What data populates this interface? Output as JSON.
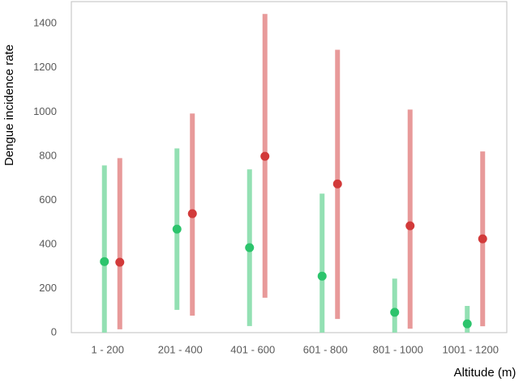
{
  "chart_data": {
    "type": "dot-range",
    "y_label": "Dengue incidence rate",
    "x_label": "Altitude (m)",
    "categories": [
      "1 - 200",
      "201 - 400",
      "401 - 600",
      "601 - 800",
      "801 - 1000",
      "1001 - 1200"
    ],
    "series": [
      {
        "color": "#93e0b3",
        "marker_color": "#2cc46c",
        "values": [
          322,
          469,
          385,
          256,
          92,
          40
        ],
        "low": [
          0,
          103,
          30,
          0,
          0,
          0
        ],
        "high": [
          758,
          835,
          740,
          630,
          245,
          121
        ]
      },
      {
        "color": "#e89a9a",
        "marker_color": "#d23a3a",
        "values": [
          319,
          539,
          799,
          674,
          484,
          425
        ],
        "low": [
          15,
          77,
          158,
          62,
          18,
          29
        ],
        "high": [
          791,
          993,
          1444,
          1282,
          1011,
          821
        ]
      }
    ],
    "ylim": [
      0,
      1500
    ],
    "yticks": [
      0,
      200,
      400,
      600,
      800,
      1000,
      1200,
      1400
    ],
    "grid": false
  }
}
